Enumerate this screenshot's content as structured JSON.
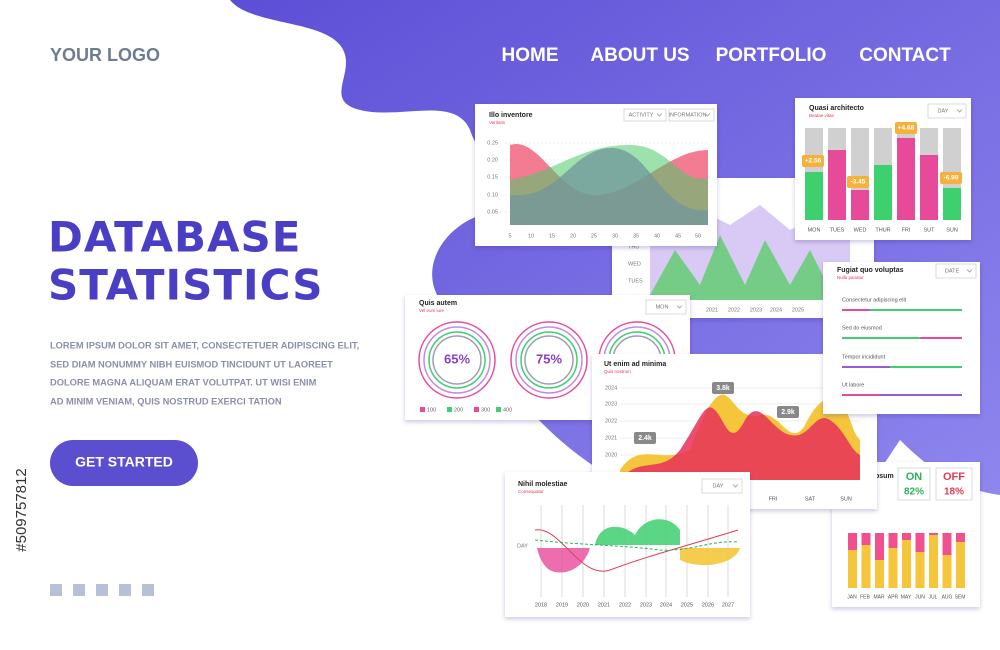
{
  "header": {
    "logo": "YOUR LOGO",
    "nav": [
      "HOME",
      "ABOUT US",
      "PORTFOLIO",
      "CONTACT"
    ]
  },
  "hero": {
    "title_lines": [
      "DATABASE",
      "STATISTICS"
    ],
    "body_lines": [
      "LOREM IPSUM DOLOR SIT AMET, CONSECTETUER ADIPISCING ELIT,",
      "SED DIAM NONUMMY NIBH EUISMOD TINCIDUNT UT LAOREET",
      "DOLORE MAGNA ALIQUAM ERAT VOLUTPAT. UT WISI ENIM",
      "AD MINIM VENIAM, QUIS NOSTRUD EXERCI TATION"
    ],
    "button": "GET STARTED"
  },
  "stock_id": "#509757812",
  "panels": {
    "p1": {
      "title": "Illo inventore",
      "subtitle": "Veritatis",
      "tabs": [
        "ACTIVITY",
        "INFORMATION"
      ],
      "yticks": [
        "0.25",
        "0.20",
        "0.15",
        "0.10",
        "0.05"
      ],
      "xticks": [
        "5",
        "10",
        "15",
        "20",
        "25",
        "30",
        "35",
        "40",
        "45",
        "50"
      ]
    },
    "p2": {
      "title": "Quasi architecto",
      "subtitle": "Beatae vitae",
      "dropdown": "DAY",
      "callouts": [
        "+2.56",
        "-3.45",
        "+4.68",
        "-6.99"
      ],
      "days": [
        "MON",
        "TUES",
        "WED",
        "THUR",
        "FRI",
        "SUT",
        "SUN"
      ]
    },
    "p3": {
      "ylabels": [
        "THU",
        "WED",
        "TUES"
      ],
      "xticks": [
        "2021",
        "2022",
        "2023",
        "2024",
        "2025"
      ]
    },
    "p4": {
      "title": "Quis autem",
      "subtitle": "Vel eum iure",
      "dropdown": "MON",
      "rings": [
        "65%",
        "75%"
      ],
      "legend": [
        "100",
        "200",
        "300",
        "400"
      ]
    },
    "p5": {
      "title": "Fugiat quo voluptas",
      "subtitle": "Nulla pariatur",
      "dropdown": "DATE",
      "items": [
        "Consectetur adipiscing elit",
        "Sed do eiusmod",
        "Tempor incididunt",
        "Ut labore"
      ]
    },
    "p6": {
      "title": "Ut enim ad minima",
      "subtitle": "Quis nostrum",
      "yticks": [
        "2024",
        "2023",
        "2022",
        "2021",
        "2020"
      ],
      "callouts": [
        "3.8k",
        "2.9k",
        "2.4k"
      ],
      "xticks": [
        "FRI",
        "SAT",
        "SUN"
      ]
    },
    "p7": {
      "title": "Nihil molestiae",
      "subtitle": "Consequatur",
      "dropdown": "DAY",
      "ylabel": "DAY",
      "xticks": [
        "2018",
        "2019",
        "2020",
        "2021",
        "2022",
        "2023",
        "2024",
        "2025",
        "2026",
        "2027"
      ]
    },
    "p8": {
      "title_fragment": "psum",
      "on_label": "ON",
      "on_value": "82%",
      "off_label": "OFF",
      "off_value": "18%",
      "months": [
        "JAN",
        "FEB",
        "MAR",
        "APR",
        "MAY",
        "JUN",
        "JUL",
        "AUG",
        "SEM"
      ]
    }
  }
}
